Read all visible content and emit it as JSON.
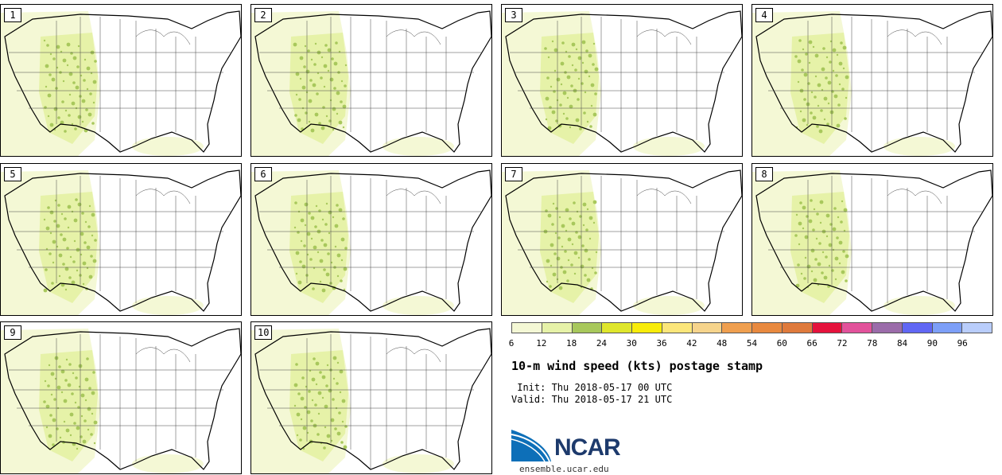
{
  "panels": [
    {
      "label": "1"
    },
    {
      "label": "2"
    },
    {
      "label": "3"
    },
    {
      "label": "4"
    },
    {
      "label": "5"
    },
    {
      "label": "6"
    },
    {
      "label": "7"
    },
    {
      "label": "8"
    },
    {
      "label": "9"
    },
    {
      "label": "10"
    }
  ],
  "colorbar": {
    "colors": [
      "#f4f8d5",
      "#e6f2a8",
      "#a8c85c",
      "#dfe62c",
      "#f8ec0a",
      "#fbe67a",
      "#f6d48c",
      "#ef9f4f",
      "#e8893f",
      "#df7a3c",
      "#e5123c",
      "#e2529b",
      "#9b6caa",
      "#6167f4",
      "#7d9ff8",
      "#b9cdfb"
    ],
    "ticks": [
      "6",
      "12",
      "18",
      "24",
      "30",
      "36",
      "42",
      "48",
      "54",
      "60",
      "66",
      "72",
      "78",
      "84",
      "90",
      "96"
    ]
  },
  "title": "10-m wind speed (kts) postage stamp",
  "init": " Init: Thu 2018-05-17 00 UTC",
  "valid": "Valid: Thu 2018-05-17 21 UTC",
  "logo": {
    "text": "NCAR",
    "url": "ensemble.ucar.edu",
    "colors": {
      "blue": "#0d6fb8",
      "navy": "#1d3a6c"
    }
  }
}
